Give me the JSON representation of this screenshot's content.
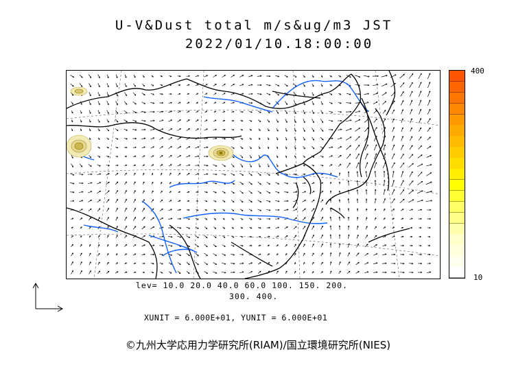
{
  "title": {
    "line1": "U-V&Dust total m/s&ug/m3 JST",
    "line2": "2022/01/10.18:00:00"
  },
  "contour_levels": {
    "line1": "lev= 10.0 20.0 40.0 60.0 100. 150. 200.",
    "line2": "300. 400."
  },
  "units": "XUNIT = 6.000E+01, YUNIT = 6.000E+01",
  "colorbar": {
    "max_label": "400",
    "min_label": "10",
    "colors": [
      "#ff5500",
      "#ff6600",
      "#ff7700",
      "#ff8800",
      "#ff9900",
      "#ffaa00",
      "#ffbb00",
      "#ffcc00",
      "#ffdd00",
      "#ffee00",
      "#ffff00",
      "#ffff33",
      "#ffff66",
      "#ffff88",
      "#ffffaa",
      "#ffffcc",
      "#ffffdd",
      "#ffffee",
      "#ffffff"
    ]
  },
  "credit": "©九州大学応用力学研究所(RIAM)/国立環境研究所(NIES)",
  "colors": {
    "coastline": "#000000",
    "rivers": "#1060ff",
    "dust_low": "#f2eab4",
    "dust_high": "#8b7a00",
    "vectors": "#000000"
  }
}
